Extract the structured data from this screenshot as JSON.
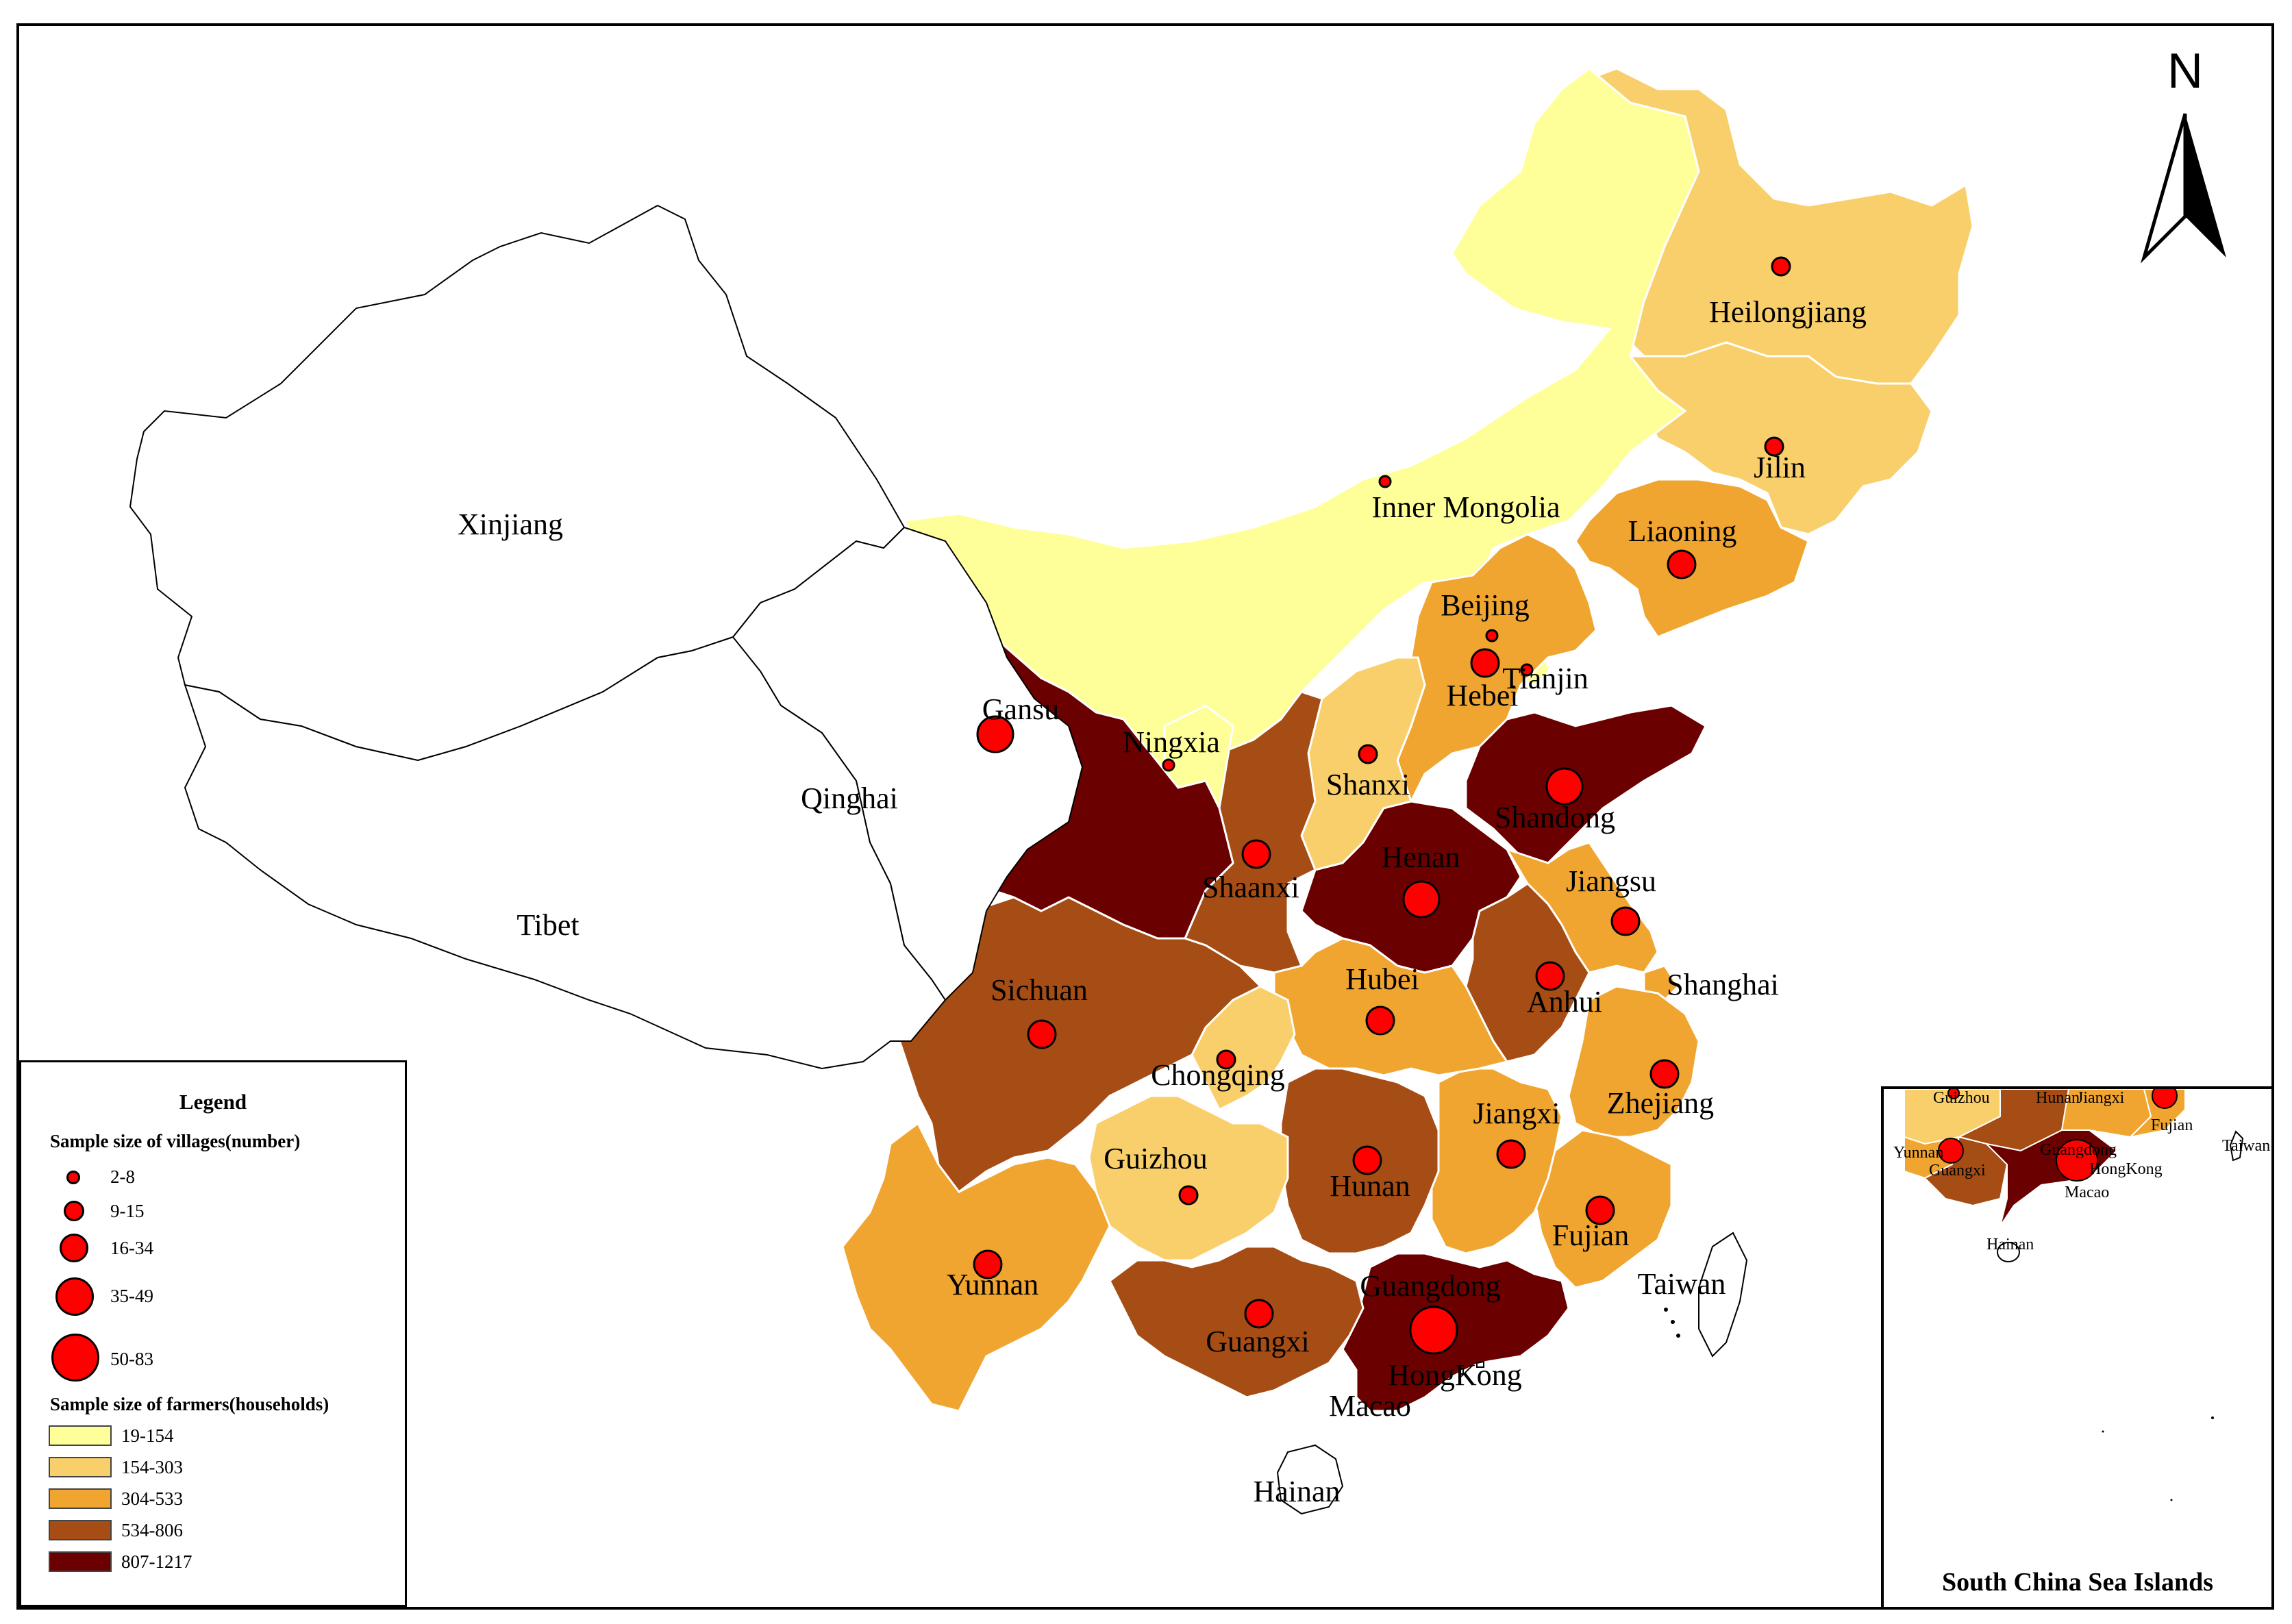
{
  "colors": {
    "class1": "#ffff99",
    "class2": "#f9cf6b",
    "class3": "#f0a531",
    "class4": "#a54d15",
    "class5": "#6b0000",
    "none": "#ffffff",
    "marker": "#ff0000"
  },
  "north_label": "N",
  "legend": {
    "title": "Legend",
    "villages_title": "Sample size of villages(number)",
    "villages": [
      "2-8",
      "9-15",
      "16-34",
      "35-49",
      "50-83"
    ],
    "farmers_title": "Sample size of farmers(households)",
    "farmers": [
      "19-154",
      "154-303",
      "304-533",
      "534-806",
      "807-1217"
    ]
  },
  "inset": {
    "caption": "South China Sea Islands",
    "labels": [
      "Guizhou",
      "Hunan",
      "Jiangxi",
      "Fujian",
      "Yunnan",
      "Guangxi",
      "Guangdong",
      "HongKong",
      "Macao",
      "Taiwan",
      "Hainan"
    ]
  },
  "provinces": [
    {
      "name": "Heilongjiang",
      "farmer_class": 2,
      "village_class": 2
    },
    {
      "name": "Jilin",
      "farmer_class": 2,
      "village_class": 2
    },
    {
      "name": "Liaoning",
      "farmer_class": 3,
      "village_class": 3
    },
    {
      "name": "Inner Mongolia",
      "farmer_class": 1,
      "village_class": 1
    },
    {
      "name": "Beijing",
      "farmer_class": 1,
      "village_class": 1
    },
    {
      "name": "Tianjin",
      "farmer_class": 1,
      "village_class": 1
    },
    {
      "name": "Hebei",
      "farmer_class": 3,
      "village_class": 3
    },
    {
      "name": "Shanxi",
      "farmer_class": 2,
      "village_class": 2
    },
    {
      "name": "Shandong",
      "farmer_class": 5,
      "village_class": 4
    },
    {
      "name": "Henan",
      "farmer_class": 5,
      "village_class": 4
    },
    {
      "name": "Jiangsu",
      "farmer_class": 3,
      "village_class": 3
    },
    {
      "name": "Anhui",
      "farmer_class": 4,
      "village_class": 3
    },
    {
      "name": "Shanghai",
      "farmer_class": 3,
      "village_class": 0
    },
    {
      "name": "Zhejiang",
      "farmer_class": 3,
      "village_class": 3
    },
    {
      "name": "Fujian",
      "farmer_class": 3,
      "village_class": 3
    },
    {
      "name": "Jiangxi",
      "farmer_class": 3,
      "village_class": 3
    },
    {
      "name": "Hubei",
      "farmer_class": 3,
      "village_class": 3
    },
    {
      "name": "Hunan",
      "farmer_class": 4,
      "village_class": 3
    },
    {
      "name": "Guangdong",
      "farmer_class": 5,
      "village_class": 5
    },
    {
      "name": "Guangxi",
      "farmer_class": 4,
      "village_class": 3
    },
    {
      "name": "Hainan",
      "farmer_class": 0,
      "village_class": 0
    },
    {
      "name": "HongKong",
      "farmer_class": 0,
      "village_class": 0
    },
    {
      "name": "Macao",
      "farmer_class": 0,
      "village_class": 0
    },
    {
      "name": "Taiwan",
      "farmer_class": 0,
      "village_class": 0
    },
    {
      "name": "Chongqing",
      "farmer_class": 2,
      "village_class": 2
    },
    {
      "name": "Guizhou",
      "farmer_class": 2,
      "village_class": 2
    },
    {
      "name": "Yunnan",
      "farmer_class": 3,
      "village_class": 3
    },
    {
      "name": "Sichuan",
      "farmer_class": 4,
      "village_class": 3
    },
    {
      "name": "Shaanxi",
      "farmer_class": 4,
      "village_class": 3
    },
    {
      "name": "Ningxia",
      "farmer_class": 1,
      "village_class": 1
    },
    {
      "name": "Gansu",
      "farmer_class": 5,
      "village_class": 4
    },
    {
      "name": "Qinghai",
      "farmer_class": 0,
      "village_class": 0
    },
    {
      "name": "Tibet",
      "farmer_class": 0,
      "village_class": 0
    },
    {
      "name": "Xinjiang",
      "farmer_class": 0,
      "village_class": 0
    }
  ]
}
